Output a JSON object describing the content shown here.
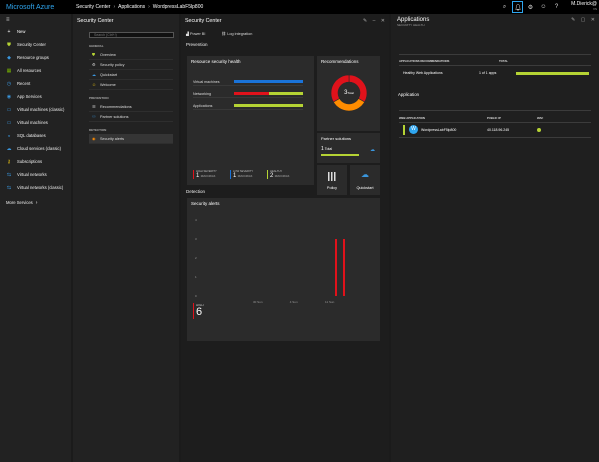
{
  "topbar": {
    "brand": "Microsoft Azure",
    "breadcrumb": [
      "Security Center",
      "Applications",
      "WordpressLabF5lp800"
    ],
    "user_name": "M.Dierick@",
    "user_sub": "VS"
  },
  "leftnav": {
    "items": [
      {
        "label": "New",
        "icon": "plus-icon",
        "color": "#ffffff"
      },
      {
        "label": "Security Center",
        "icon": "shield-icon",
        "color": "#b5d334"
      },
      {
        "label": "Resource groups",
        "icon": "cube-icon",
        "color": "#3a96dd"
      },
      {
        "label": "All resources",
        "icon": "grid-icon",
        "color": "#7ab800"
      },
      {
        "label": "Recent",
        "icon": "clock-icon",
        "color": "#3a96dd"
      },
      {
        "label": "App Services",
        "icon": "globe-icon",
        "color": "#3a96dd"
      },
      {
        "label": "Virtual machines (classic)",
        "icon": "monitor-icon",
        "color": "#3a96dd"
      },
      {
        "label": "Virtual machines",
        "icon": "monitor-icon",
        "color": "#3a96dd"
      },
      {
        "label": "SQL databases",
        "icon": "database-icon",
        "color": "#3a96dd"
      },
      {
        "label": "Cloud services (classic)",
        "icon": "cloud-icon",
        "color": "#3a96dd"
      },
      {
        "label": "Subscriptions",
        "icon": "key-icon",
        "color": "#f2c811"
      },
      {
        "label": "Virtual networks",
        "icon": "network-icon",
        "color": "#3a96dd"
      },
      {
        "label": "Virtual networks (classic)",
        "icon": "network-icon",
        "color": "#3a96dd"
      }
    ],
    "more": "More Services"
  },
  "security_center": {
    "title": "Security Center",
    "search_placeholder": "Search (Ctrl+/)",
    "sections": [
      {
        "label": "GENERAL",
        "items": [
          {
            "label": "Overview",
            "icon": "shield-icon",
            "active": false
          },
          {
            "label": "Security policy",
            "icon": "policy-icon",
            "active": false
          },
          {
            "label": "Quickstart",
            "icon": "quickstart-icon",
            "active": false
          },
          {
            "label": "Welcome",
            "icon": "welcome-icon",
            "active": false
          }
        ]
      },
      {
        "label": "PREVENTION",
        "items": [
          {
            "label": "Recommendations",
            "icon": "list-icon",
            "active": false
          },
          {
            "label": "Partner solutions",
            "icon": "partner-icon",
            "active": false
          }
        ]
      },
      {
        "label": "DETECTION",
        "items": [
          {
            "label": "Security alerts",
            "icon": "alert-icon",
            "active": true
          }
        ]
      }
    ]
  },
  "main": {
    "commands": [
      "Power BI",
      "Log integration"
    ],
    "prevention_label": "Prevention",
    "detection_label": "Detection",
    "resource_health": {
      "title": "Resource security health",
      "rows": [
        {
          "label": "Virtual machines",
          "segments": [
            {
              "color": "#1a73d9",
              "fraction": 1.0
            }
          ]
        },
        {
          "label": "Networking",
          "segments": [
            {
              "color": "#e0121b",
              "fraction": 0.5
            },
            {
              "color": "#b5d334",
              "fraction": 0.5
            }
          ]
        },
        {
          "label": "Applications",
          "segments": [
            {
              "color": "#b5d334",
              "fraction": 1.0
            }
          ]
        }
      ],
      "severity": [
        {
          "label": "HIGH SEVERITY",
          "value": "1",
          "caption": "RESOURCES",
          "color": "#e0121b"
        },
        {
          "label": "LOW SEVERITY",
          "value": "1",
          "caption": "RESOURCES",
          "color": "#1a73d9"
        },
        {
          "label": "HEALTHY",
          "value": "2",
          "caption": "RESOURCES",
          "color": "#b5d334"
        }
      ]
    },
    "recommendations": {
      "title": "Recommendations",
      "total_value": "3",
      "total_label": "Total",
      "slices": [
        {
          "color": "#e0121b",
          "value": 1
        },
        {
          "color": "#ff8c00",
          "value": 1
        },
        {
          "color": "#e0121b",
          "value": 1
        }
      ]
    },
    "partner": {
      "title": "Partner solutions",
      "total_value": "1",
      "total_label": "Total",
      "bar_color": "#b5d334",
      "buttons": [
        {
          "label": "Policy",
          "icon": "policy-bars-icon"
        },
        {
          "label": "Quickstart",
          "icon": "quickstart-cloud-icon"
        }
      ]
    },
    "alerts": {
      "title": "Security alerts",
      "y_ticks": [
        "4",
        "3",
        "2",
        "1",
        "0"
      ],
      "x_ticks": [
        "30 Sun",
        "4 Sun",
        "11 Sun"
      ],
      "bars": [
        {
          "position": 0.865,
          "value": 3
        },
        {
          "position": 0.915,
          "value": 3
        }
      ],
      "high_label": "HIGH",
      "high_value": "6",
      "color": "#e0121b"
    }
  },
  "apps": {
    "title": "Applications",
    "subtitle": "SECURITY HEALTH",
    "summary_headers": [
      "APPLICATIONS RECOMMENDATIONS",
      "TOTAL"
    ],
    "summary_row": {
      "label": "Healthy Web Applications",
      "total": "1 of 1 apps",
      "bar_color": "#b5d334"
    },
    "application_label": "Application",
    "table_headers": [
      "WEB APPLICATION",
      "PUBLIC IP",
      "WAF"
    ],
    "row": {
      "name": "WordpressLabF5lp800",
      "ip": "40.118.96.245",
      "status_color": "#b5d334"
    }
  }
}
